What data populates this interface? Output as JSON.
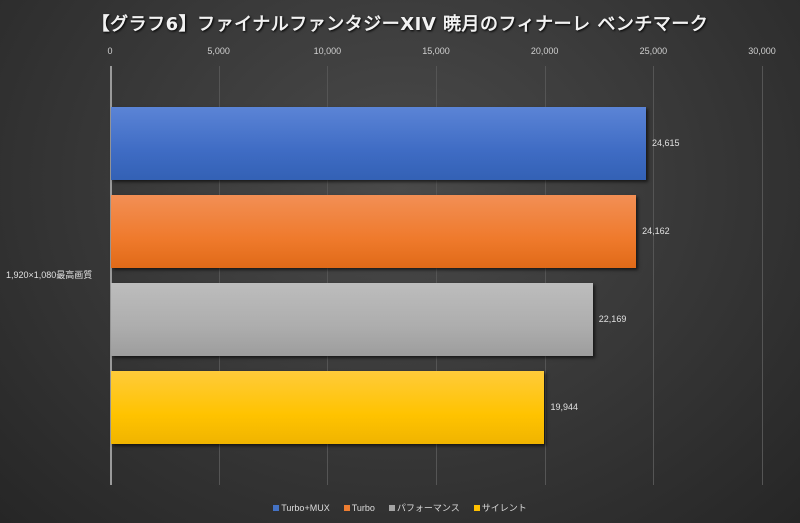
{
  "chart_data": {
    "type": "bar",
    "orientation": "horizontal",
    "title": "【グラフ6】ファイナルファンタジーXIV 暁月のフィナーレ ベンチマーク",
    "categories": [
      "1,920×1,080最高画質"
    ],
    "series": [
      {
        "name": "Turbo+MUX",
        "values": [
          24615
        ],
        "color": "#4472c4",
        "label": "24,615"
      },
      {
        "name": "Turbo",
        "values": [
          24162
        ],
        "color": "#ed7d31",
        "label": "24,162"
      },
      {
        "name": "パフォーマンス",
        "values": [
          22169
        ],
        "color": "#a5a5a5",
        "label": "22,169"
      },
      {
        "name": "サイレント",
        "values": [
          19944
        ],
        "color": "#ffc000",
        "label": "19,944"
      }
    ],
    "xlim": [
      0,
      30000
    ],
    "xticks": [
      "0",
      "5,000",
      "10,000",
      "15,000",
      "20,000",
      "25,000",
      "30,000"
    ],
    "xlabel": "",
    "ylabel": "",
    "grid": true,
    "legend_position": "bottom"
  }
}
